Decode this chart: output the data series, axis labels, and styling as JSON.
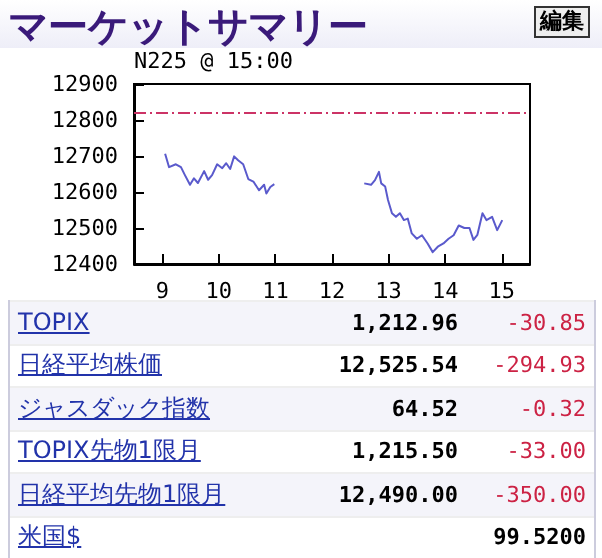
{
  "chart_data": {
    "type": "line",
    "title": "マーケットサマリー",
    "subtitle": "N225 @ 15:00",
    "x": [
      9.05,
      9.12,
      9.24,
      9.33,
      9.4,
      9.49,
      9.56,
      9.63,
      9.74,
      9.81,
      9.88,
      9.97,
      10.06,
      10.13,
      10.2,
      10.27,
      10.34,
      10.43,
      10.52,
      10.61,
      10.71,
      10.8,
      10.84,
      10.91,
      10.98,
      11.5,
      12.57,
      12.69,
      12.76,
      12.83,
      12.87,
      12.94,
      12.99,
      13.06,
      13.13,
      13.2,
      13.27,
      13.34,
      13.41,
      13.5,
      13.59,
      13.69,
      13.78,
      13.87,
      13.97,
      14.06,
      14.15,
      14.24,
      14.34,
      14.43,
      14.5,
      14.57,
      14.66,
      14.73,
      14.83,
      14.92,
      15.01
    ],
    "series": [
      {
        "color": "#5a5acc",
        "values": [
          12706,
          12669,
          12677,
          12669,
          12647,
          12620,
          12638,
          12625,
          12658,
          12634,
          12647,
          12677,
          12666,
          12680,
          12664,
          12699,
          12688,
          12677,
          12636,
          12629,
          12605,
          12620,
          12596,
          12614,
          12622,
          null,
          12624,
          12620,
          12633,
          12656,
          12624,
          12615,
          12578,
          12541,
          12531,
          12541,
          12522,
          12526,
          12485,
          12470,
          12480,
          12457,
          12433,
          12448,
          12457,
          12470,
          12480,
          12507,
          12500,
          12500,
          12467,
          12481,
          12541,
          12522,
          12531,
          12494,
          12522
        ]
      }
    ],
    "xlim": [
      8.5,
      15.5
    ],
    "xticks": [
      9,
      10,
      11,
      12,
      13,
      14,
      15
    ],
    "ylim": [
      12400,
      12900
    ],
    "yticks": [
      12400,
      12500,
      12600,
      12700,
      12800,
      12900
    ],
    "ref_lines": [
      {
        "axis": "y",
        "value": 12820,
        "color": "#cc3366",
        "line_style": "dashdot"
      }
    ],
    "grid": false,
    "marker": "none",
    "line_style": "solid",
    "annotations": [
      "編集",
      "TOPIX",
      "1,212.96",
      "-30.85",
      "日経平均株価",
      "12,525.54",
      "-294.93",
      "ジャスダック指数",
      "64.52",
      "-0.32",
      "TOPIX先物1限月",
      "1,215.50",
      "-33.00",
      "日経平均先物1限月",
      "12,490.00",
      "-350.00",
      "米国$",
      "99.5200"
    ]
  }
}
